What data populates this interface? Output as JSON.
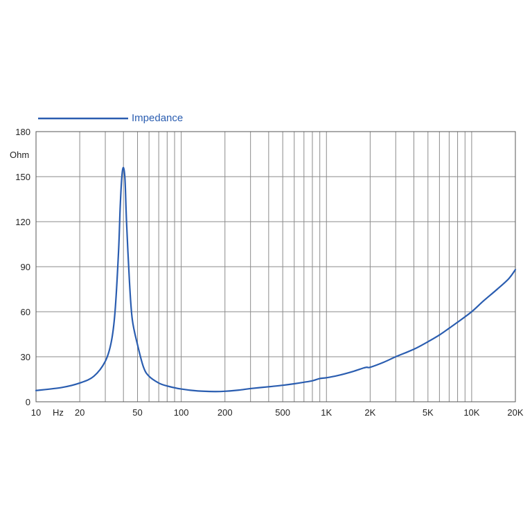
{
  "colors": {
    "series": "#2a5db0",
    "grid": "#8a8a8a",
    "axis": "#555555",
    "text": "#222222"
  },
  "chart_data": {
    "type": "line",
    "xscale": "log",
    "xlim": [
      10,
      20000
    ],
    "ylim": [
      0,
      180
    ],
    "grid": true,
    "legend_position": "top-left",
    "ylabel": "Ohm",
    "xlabel": "Hz",
    "y_ticks": [
      0,
      30,
      60,
      90,
      120,
      150,
      180
    ],
    "y_tick_labels": [
      "0",
      "30",
      "60",
      "90",
      "120",
      "150",
      "180"
    ],
    "x_ticks": [
      10,
      20,
      50,
      100,
      200,
      500,
      1000,
      2000,
      5000,
      10000,
      20000
    ],
    "x_tick_labels": [
      "10",
      "20",
      "50",
      "100",
      "200",
      "500",
      "1K",
      "2K",
      "5K",
      "10K",
      "20K"
    ],
    "x_gridlines": [
      10,
      20,
      30,
      40,
      50,
      60,
      70,
      80,
      90,
      100,
      200,
      300,
      400,
      500,
      600,
      700,
      800,
      900,
      1000,
      2000,
      3000,
      4000,
      5000,
      6000,
      7000,
      8000,
      9000,
      10000,
      20000
    ],
    "series": [
      {
        "name": "Impedance",
        "x": [
          10,
          15,
          20,
          25,
          30,
          33,
          35,
          37,
          38,
          39,
          40,
          41,
          42,
          44,
          46,
          50,
          55,
          60,
          70,
          80,
          100,
          130,
          170,
          200,
          250,
          300,
          400,
          500,
          600,
          700,
          800,
          900,
          1000,
          1200,
          1500,
          1800,
          1900,
          2000,
          2500,
          3000,
          4000,
          5000,
          6000,
          7000,
          8000,
          10000,
          12000,
          15000,
          18000,
          20000
        ],
        "y": [
          7.5,
          9.5,
          12.5,
          17,
          27,
          40,
          60,
          100,
          130,
          150,
          156,
          148,
          120,
          80,
          55,
          38,
          23,
          17,
          12.5,
          10.5,
          8.5,
          7.2,
          6.8,
          7,
          7.8,
          8.8,
          10,
          11,
          12,
          13,
          14,
          15.5,
          16,
          17.5,
          20,
          22.5,
          23,
          23,
          26.5,
          30,
          35,
          40,
          44.5,
          49,
          53,
          60,
          67,
          75,
          82,
          88
        ]
      }
    ]
  }
}
